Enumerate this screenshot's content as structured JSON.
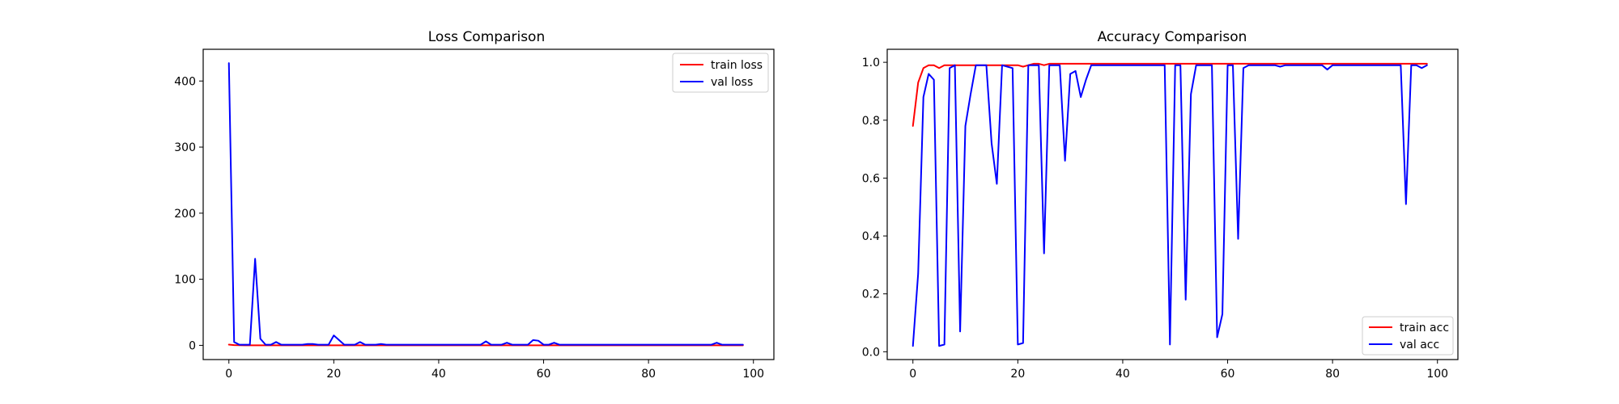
{
  "colors": {
    "train": "#ff0000",
    "val": "#0000ff"
  },
  "chart_data": [
    {
      "type": "line",
      "title": "Loss Comparison",
      "xlabel": "",
      "ylabel": "",
      "xlim": [
        -4.9,
        103.9
      ],
      "ylim": [
        -21.5,
        448
      ],
      "xticks": [
        0,
        20,
        40,
        60,
        80,
        100
      ],
      "yticks": [
        0,
        100,
        200,
        300,
        400
      ],
      "legend": "top-right",
      "grid": false,
      "series": [
        {
          "name": "train loss",
          "color": "#ff0000",
          "x_start": 0,
          "values": [
            1.1,
            0.35,
            0.15,
            0.1,
            0.08,
            0.06,
            0.06,
            0.05,
            0.05,
            0.04,
            0.04,
            0.04,
            0.04,
            0.03,
            0.03,
            0.03,
            0.03,
            0.03,
            0.03,
            0.03,
            0.03,
            0.03,
            0.02,
            0.02,
            0.02,
            0.02,
            0.02,
            0.02,
            0.02,
            0.02,
            0.02,
            0.02,
            0.02,
            0.02,
            0.02,
            0.02,
            0.02,
            0.02,
            0.02,
            0.02,
            0.02,
            0.02,
            0.02,
            0.02,
            0.02,
            0.02,
            0.02,
            0.02,
            0.02,
            0.02,
            0.02,
            0.02,
            0.02,
            0.02,
            0.02,
            0.02,
            0.02,
            0.02,
            0.02,
            0.02,
            0.02,
            0.02,
            0.02,
            0.02,
            0.02,
            0.02,
            0.02,
            0.02,
            0.02,
            0.02,
            0.02,
            0.02,
            0.02,
            0.02,
            0.02,
            0.02,
            0.02,
            0.02,
            0.02,
            0.02,
            0.02,
            0.02,
            0.02,
            0.02,
            0.02,
            0.02,
            0.02,
            0.02,
            0.02,
            0.02,
            0.02,
            0.02,
            0.02,
            0.02,
            0.02,
            0.02,
            0.02,
            0.02,
            0.02
          ]
        },
        {
          "name": "val loss",
          "color": "#0000ff",
          "x_start": 0,
          "values": [
            427,
            5,
            1,
            1,
            1,
            131,
            10,
            1,
            1,
            5,
            1,
            1,
            1,
            1,
            1,
            2,
            2,
            1,
            1,
            1,
            15,
            8,
            1,
            1,
            1,
            5,
            1,
            1,
            1,
            2,
            1,
            1,
            1,
            1,
            1,
            1,
            1,
            1,
            1,
            1,
            1,
            1,
            1,
            1,
            1,
            1,
            1,
            1,
            1,
            6,
            1,
            1,
            1,
            4,
            1,
            1,
            1,
            1,
            8,
            7,
            1,
            1,
            4,
            1,
            1,
            1,
            1,
            1,
            1,
            1,
            1,
            1,
            1,
            1,
            1,
            1,
            1,
            1,
            1,
            1,
            1,
            1,
            1,
            1,
            1,
            1,
            1,
            1,
            1,
            1,
            1,
            1,
            1,
            4,
            1,
            1,
            1,
            1,
            1
          ]
        }
      ]
    },
    {
      "type": "line",
      "title": "Accuracy Comparison",
      "xlabel": "",
      "ylabel": "",
      "xlim": [
        -4.9,
        103.9
      ],
      "ylim": [
        -0.027,
        1.045
      ],
      "xticks": [
        0,
        20,
        40,
        60,
        80,
        100
      ],
      "yticks": [
        0.0,
        0.2,
        0.4,
        0.6,
        0.8,
        1.0
      ],
      "legend": "bottom-right",
      "grid": false,
      "series": [
        {
          "name": "train acc",
          "color": "#ff0000",
          "x_start": 0,
          "values": [
            0.78,
            0.93,
            0.98,
            0.99,
            0.99,
            0.98,
            0.99,
            0.99,
            0.99,
            0.99,
            0.99,
            0.99,
            0.99,
            0.99,
            0.99,
            0.99,
            0.99,
            0.99,
            0.99,
            0.99,
            0.99,
            0.985,
            0.99,
            0.995,
            0.995,
            0.99,
            0.995,
            0.995,
            0.995,
            0.995,
            0.995,
            0.995,
            0.995,
            0.995,
            0.995,
            0.995,
            0.995,
            0.995,
            0.995,
            0.995,
            0.995,
            0.995,
            0.995,
            0.995,
            0.995,
            0.995,
            0.995,
            0.995,
            0.995,
            0.995,
            0.995,
            0.995,
            0.995,
            0.995,
            0.995,
            0.995,
            0.995,
            0.995,
            0.995,
            0.995,
            0.995,
            0.995,
            0.995,
            0.995,
            0.995,
            0.995,
            0.995,
            0.995,
            0.995,
            0.995,
            0.995,
            0.995,
            0.995,
            0.995,
            0.995,
            0.995,
            0.995,
            0.995,
            0.995,
            0.995,
            0.995,
            0.995,
            0.995,
            0.995,
            0.995,
            0.995,
            0.995,
            0.995,
            0.995,
            0.995,
            0.995,
            0.995,
            0.995,
            0.995,
            0.995,
            0.995,
            0.995,
            0.995,
            0.995
          ]
        },
        {
          "name": "val acc",
          "color": "#0000ff",
          "x_start": 0,
          "values": [
            0.02,
            0.27,
            0.88,
            0.96,
            0.94,
            0.02,
            0.025,
            0.98,
            0.99,
            0.07,
            0.78,
            0.89,
            0.99,
            0.99,
            0.99,
            0.72,
            0.58,
            0.99,
            0.985,
            0.98,
            0.025,
            0.03,
            0.99,
            0.99,
            0.99,
            0.34,
            0.99,
            0.99,
            0.99,
            0.66,
            0.96,
            0.97,
            0.88,
            0.94,
            0.99,
            0.99,
            0.99,
            0.99,
            0.99,
            0.99,
            0.99,
            0.99,
            0.99,
            0.99,
            0.99,
            0.99,
            0.99,
            0.99,
            0.99,
            0.025,
            0.99,
            0.99,
            0.18,
            0.89,
            0.99,
            0.99,
            0.99,
            0.99,
            0.05,
            0.13,
            0.99,
            0.99,
            0.39,
            0.98,
            0.99,
            0.99,
            0.99,
            0.99,
            0.99,
            0.99,
            0.985,
            0.99,
            0.99,
            0.99,
            0.99,
            0.99,
            0.99,
            0.99,
            0.99,
            0.975,
            0.99,
            0.99,
            0.99,
            0.99,
            0.99,
            0.99,
            0.99,
            0.99,
            0.99,
            0.99,
            0.99,
            0.99,
            0.99,
            0.99,
            0.51,
            0.99,
            0.99,
            0.98,
            0.99
          ]
        }
      ]
    }
  ]
}
